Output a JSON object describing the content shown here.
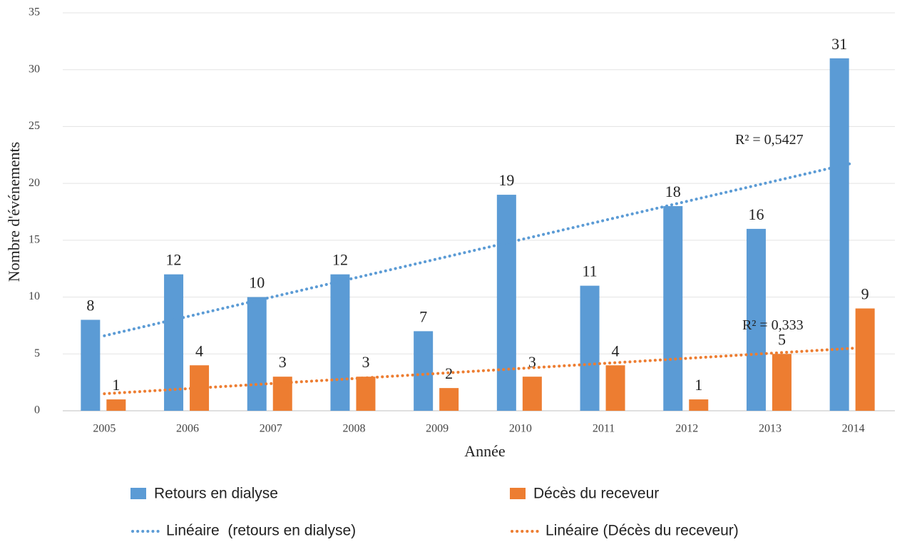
{
  "chart_data": {
    "type": "bar",
    "x_label": "Année",
    "y_label": "Nombre d'événements",
    "categories": [
      "2005",
      "2006",
      "2007",
      "2008",
      "2009",
      "2010",
      "2011",
      "2012",
      "2013",
      "2014"
    ],
    "series": [
      {
        "name": "Retours en dialyse",
        "color": "#5b9bd5",
        "values": [
          8,
          12,
          10,
          12,
          7,
          19,
          11,
          18,
          16,
          31
        ]
      },
      {
        "name": "Décès du receveur",
        "color": "#ed7d31",
        "values": [
          1,
          4,
          3,
          3,
          2,
          3,
          4,
          1,
          5,
          9
        ]
      }
    ],
    "trendlines": [
      {
        "name": "Linéaire  (retours en dialyse)",
        "color": "#5b9bd5",
        "values": [
          6.6,
          21.8
        ],
        "label": "R² = 0,5427"
      },
      {
        "name": "Linéaire (Décès du receveur)",
        "color": "#ed7d31",
        "values": [
          1.5,
          5.5
        ],
        "label": "R² = 0,333"
      }
    ],
    "ylim": [
      0,
      35
    ],
    "yticks": [
      0,
      5,
      10,
      15,
      20,
      25,
      30,
      35
    ],
    "grid": true
  }
}
